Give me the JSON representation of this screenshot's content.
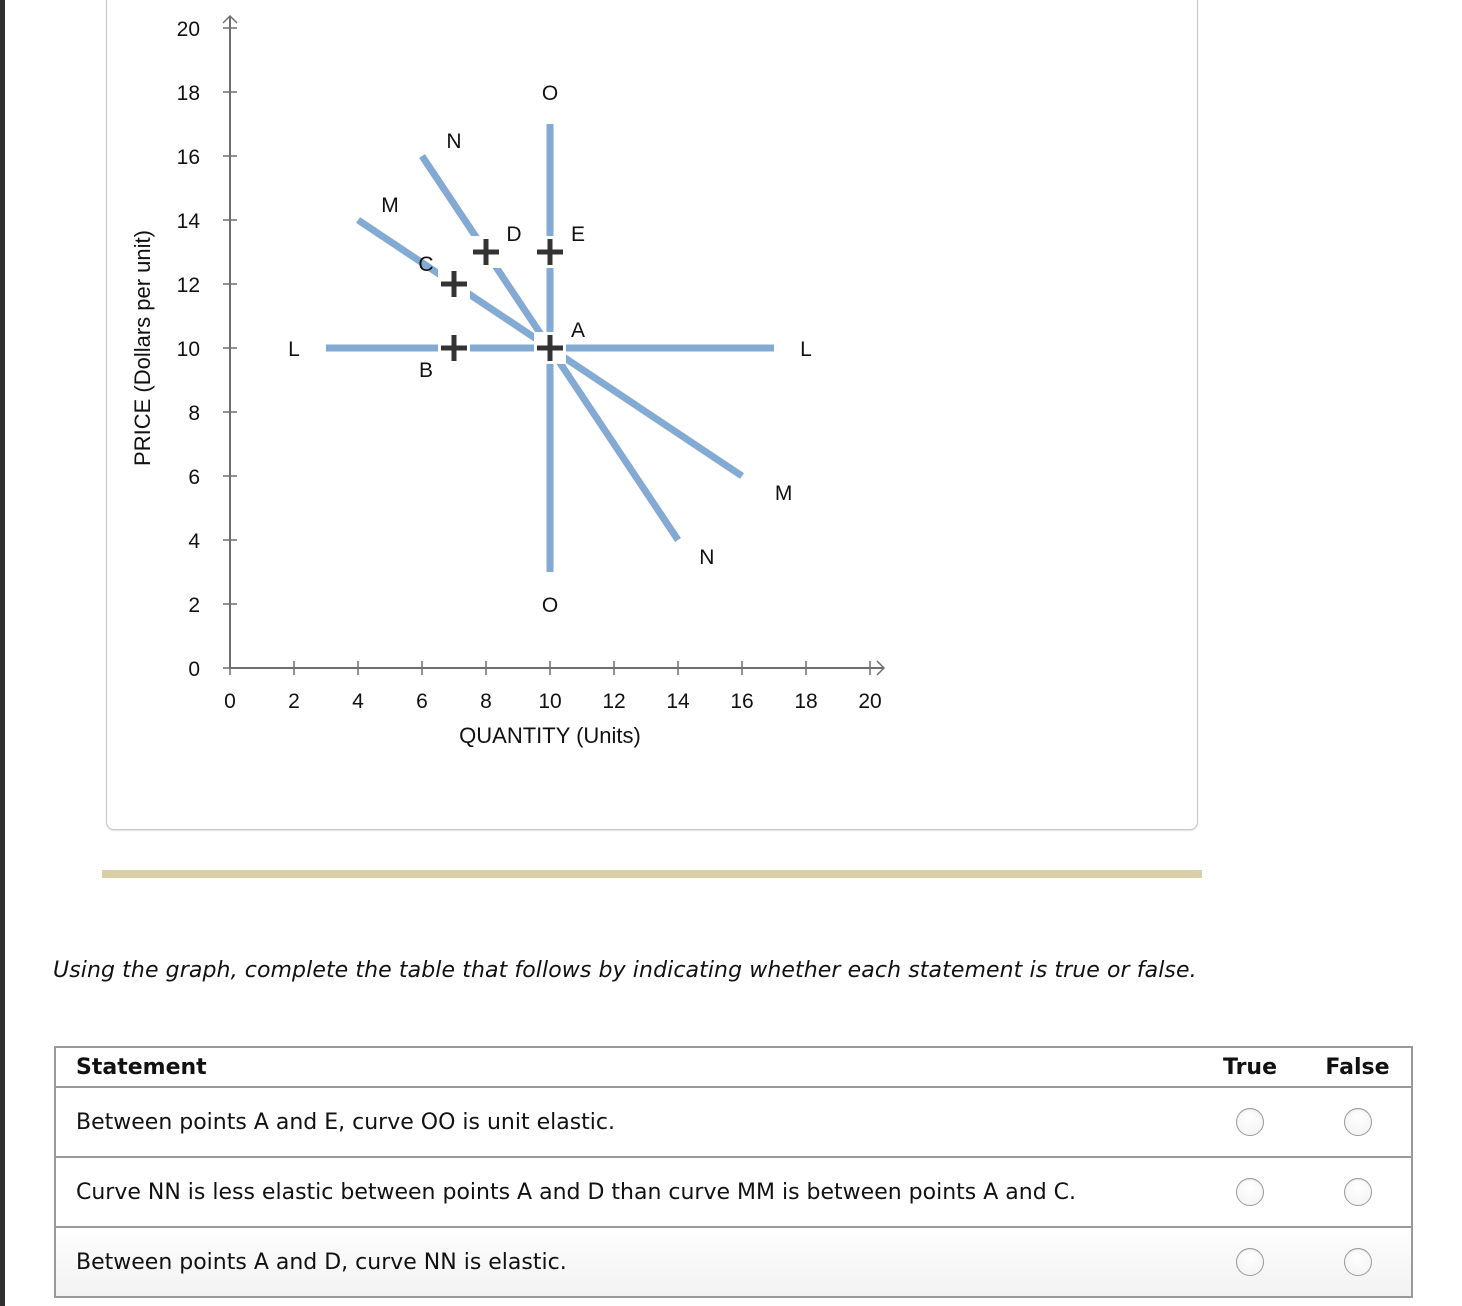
{
  "chart_data": {
    "type": "line",
    "title": "",
    "xlabel": "QUANTITY (Units)",
    "ylabel": "PRICE (Dollars per unit)",
    "xlim": [
      0,
      20
    ],
    "ylim": [
      0,
      20
    ],
    "x_ticks": [
      0,
      2,
      4,
      6,
      8,
      10,
      12,
      14,
      16,
      18,
      20
    ],
    "y_ticks": [
      0,
      2,
      4,
      6,
      8,
      10,
      12,
      14,
      16,
      18,
      20
    ],
    "grid": false,
    "line_color": "#82aad2",
    "series": [
      {
        "name": "LL",
        "points": [
          [
            3,
            10
          ],
          [
            17,
            10
          ]
        ],
        "labels": [
          "L",
          "L"
        ]
      },
      {
        "name": "OO",
        "points": [
          [
            10,
            17
          ],
          [
            10,
            3
          ]
        ],
        "labels": [
          "O",
          "O"
        ]
      },
      {
        "name": "MM",
        "points": [
          [
            4,
            14
          ],
          [
            16,
            6
          ]
        ],
        "labels": [
          "M",
          "M"
        ]
      },
      {
        "name": "NN",
        "points": [
          [
            6,
            16
          ],
          [
            14,
            4
          ]
        ],
        "labels": [
          "N",
          "N"
        ]
      }
    ],
    "marked_points": [
      {
        "label": "A",
        "x": 10,
        "y": 10
      },
      {
        "label": "B",
        "x": 7,
        "y": 10
      },
      {
        "label": "C",
        "x": 7,
        "y": 12
      },
      {
        "label": "D",
        "x": 8,
        "y": 13
      },
      {
        "label": "E",
        "x": 10,
        "y": 13
      }
    ]
  },
  "instruction": "Using the graph, complete the table that follows by indicating whether each statement is true or false.",
  "table": {
    "headers": {
      "statement": "Statement",
      "true": "True",
      "false": "False"
    },
    "rows": [
      {
        "statement": "Between points A and E, curve OO is unit elastic.",
        "true_selected": false,
        "false_selected": false
      },
      {
        "statement": "Curve NN is less elastic between points A and D than curve MM is between points A and C.",
        "true_selected": false,
        "false_selected": false
      },
      {
        "statement": "Between points A and D, curve NN is elastic.",
        "true_selected": false,
        "false_selected": false
      }
    ]
  }
}
